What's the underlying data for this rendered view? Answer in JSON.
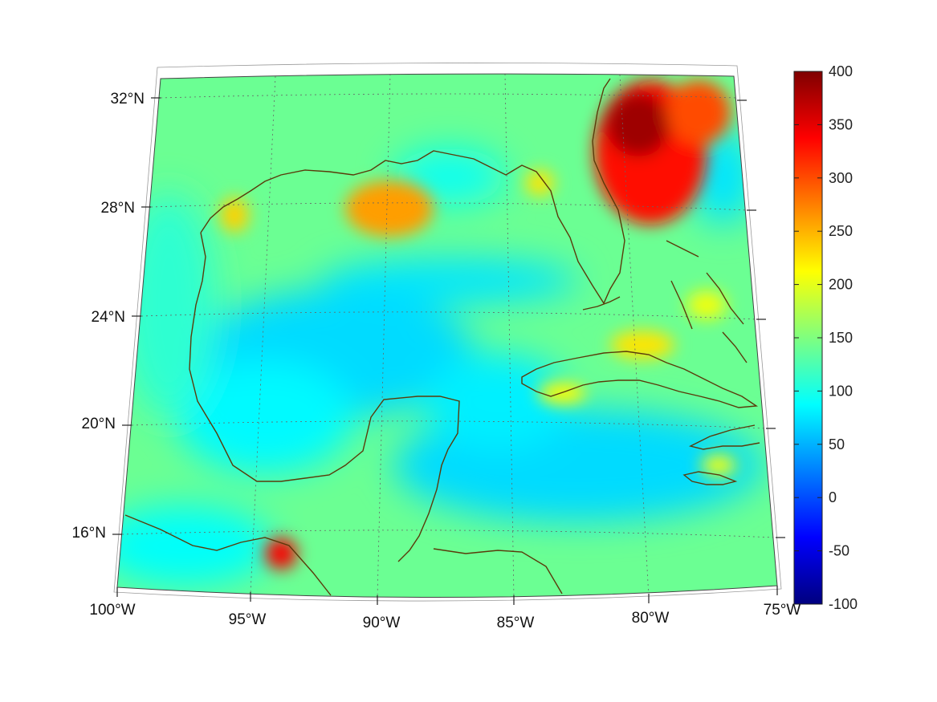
{
  "map": {
    "projection": "conic",
    "lat_ticks": [
      "32°N",
      "28°N",
      "24°N",
      "20°N",
      "16°N"
    ],
    "lon_ticks": [
      "100°W",
      "95°W",
      "90°W",
      "85°W",
      "80°W",
      "75°W"
    ],
    "grid": "dotted graticule",
    "coastline_color": "#5a3a0a"
  },
  "colorbar": {
    "ticks": [
      "400",
      "350",
      "300",
      "250",
      "200",
      "150",
      "100",
      "50",
      "0",
      "-50",
      "-100"
    ],
    "range": [
      -100,
      400
    ],
    "colormap": "jet",
    "colormap_stops": [
      "#00007f",
      "#0000ff",
      "#007fff",
      "#00ffff",
      "#7fff7f",
      "#ffff00",
      "#ff7f00",
      "#ff0000",
      "#7f0000"
    ]
  },
  "field": {
    "background_value": 140,
    "features": [
      {
        "region": "Atlantic off Georgia/Carolina",
        "value": 380
      },
      {
        "region": "Mississippi delta",
        "value": 265
      },
      {
        "region": "Texas coast",
        "value": 240
      },
      {
        "region": "Gulf of Tehuantepec",
        "value": 330
      },
      {
        "region": "Central Gulf",
        "value": 60
      },
      {
        "region": "Caribbean south of Cuba",
        "value": 50
      },
      {
        "region": "North of Cuba",
        "value": 220
      }
    ]
  }
}
